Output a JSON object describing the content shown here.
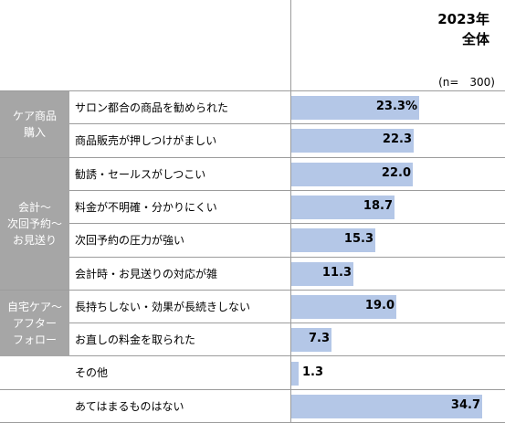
{
  "header": {
    "line1": "2023年",
    "line2": "全体",
    "note": "(n=　300)"
  },
  "colors": {
    "bar": "#b4c7e7",
    "group_bg": "#a6a6a6",
    "grid": "#9c9c9c"
  },
  "groups": [
    {
      "label": "ケア商品\n購入",
      "rows": [
        0,
        1
      ]
    },
    {
      "label": "会計～\n次回予約～\nお見送り",
      "rows": [
        2,
        5
      ]
    },
    {
      "label": "自宅ケア～\nアフター\nフォロー",
      "rows": [
        6,
        7
      ]
    }
  ],
  "chart_data": {
    "type": "bar",
    "orientation": "horizontal",
    "title": "2023年 全体",
    "categories": [
      "サロン都合の商品を勧められた",
      "商品販売が押しつけがましい",
      "勧誘・セールスがしつこい",
      "料金が不明確・分かりにくい",
      "次回予約の圧力が強い",
      "会計時・お見送りの対応が雑",
      "長持ちしない・効果が長続きしない",
      "お直しの料金を取られた",
      "その他",
      "あてはまるものはない"
    ],
    "values": [
      23.3,
      22.3,
      22.0,
      18.7,
      15.3,
      11.3,
      19.0,
      7.3,
      1.3,
      34.7
    ],
    "value_labels": [
      "23.3%",
      "22.3",
      "22.0",
      "18.7",
      "15.3",
      "11.3",
      "19.0",
      "7.3",
      "1.3",
      "34.7"
    ],
    "xlim": [
      0,
      37
    ]
  }
}
